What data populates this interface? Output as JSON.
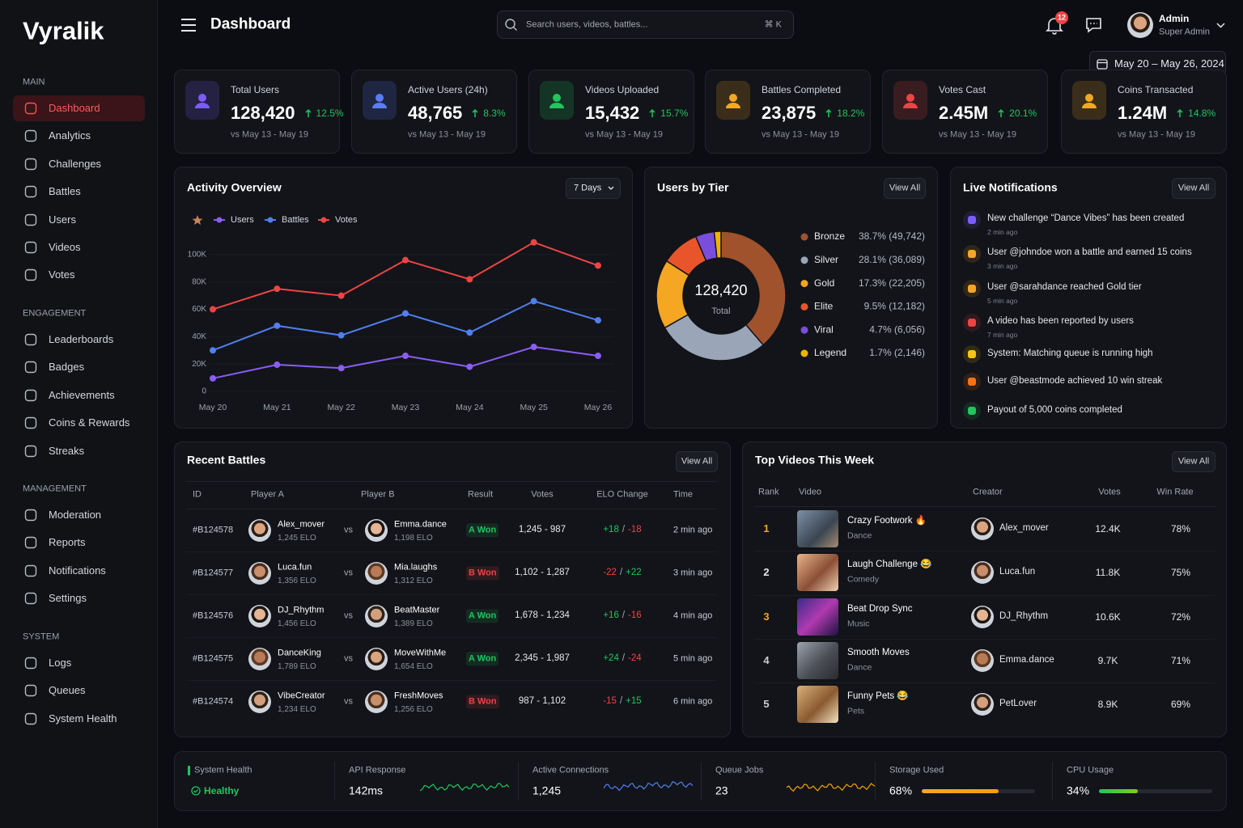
{
  "brand": "Vyralik",
  "sidebar": [
    {
      "title": "MAIN",
      "items": [
        "Dashboard",
        "Analytics",
        "Challenges",
        "Battles",
        "Users",
        "Videos",
        "Votes"
      ]
    },
    {
      "title": "ENGAGEMENT",
      "items": [
        "Leaderboards",
        "Badges",
        "Achievements",
        "Coins & Rewards",
        "Streaks"
      ]
    },
    {
      "title": "MANAGEMENT",
      "items": [
        "Moderation",
        "Reports",
        "Notifications",
        "Settings"
      ]
    },
    {
      "title": "SYSTEM",
      "items": [
        "Logs",
        "Queues",
        "System Health"
      ]
    }
  ],
  "header": {
    "title": "Dashboard",
    "search_placeholder": "Search users, videos, battles...",
    "shortcut": "⌘ K",
    "notifications_count": "12",
    "user_name": "Admin",
    "user_role": "Super Admin",
    "date_range": "May 20 – May 26, 2024"
  },
  "stats": [
    {
      "label": "Total Users",
      "value": "128,420",
      "change": "12.5%",
      "compare": "vs May 13 - May 19",
      "color": "#7c5cff"
    },
    {
      "label": "Active Users (24h)",
      "value": "48,765",
      "change": "8.3%",
      "compare": "vs May 13 - May 19",
      "color": "#5b7cfa"
    },
    {
      "label": "Videos Uploaded",
      "value": "15,432",
      "change": "15.7%",
      "compare": "vs May 13 - May 19",
      "color": "#22c55e"
    },
    {
      "label": "Battles Completed",
      "value": "23,875",
      "change": "18.2%",
      "compare": "vs May 13 - May 19",
      "color": "#f5a623"
    },
    {
      "label": "Votes Cast",
      "value": "2.45M",
      "change": "20.1%",
      "compare": "vs May 13 - May 19",
      "color": "#ef4444"
    },
    {
      "label": "Coins Transacted",
      "value": "1.24M",
      "change": "14.8%",
      "compare": "vs May 13 - May 19",
      "color": "#f5a623"
    }
  ],
  "chart_data": [
    {
      "type": "line",
      "title": "Activity Overview",
      "range": "7 Days",
      "categories": [
        "May 20",
        "May 21",
        "May 22",
        "May 23",
        "May 24",
        "May 25",
        "May 26"
      ],
      "series": [
        {
          "name": "Users",
          "color": "#8b5cf6",
          "values": [
            9500,
            19500,
            17000,
            26000,
            18000,
            32500,
            26000
          ]
        },
        {
          "name": "Battles",
          "color": "#4f7ff0",
          "values": [
            30000,
            48000,
            41000,
            57000,
            43000,
            66000,
            52000
          ]
        },
        {
          "name": "Votes",
          "color": "#ef4444",
          "values": [
            60000,
            75000,
            70000,
            96000,
            82000,
            109000,
            92000
          ]
        }
      ],
      "ylim": [
        0,
        110000
      ],
      "yticks": [
        0,
        {
          "value": 20000,
          "label": "20K"
        },
        {
          "value": 40000,
          "label": "40K"
        },
        {
          "value": 60000,
          "label": "60K"
        },
        {
          "value": 80000,
          "label": "80K"
        },
        {
          "value": 100000,
          "label": "100K"
        }
      ]
    },
    {
      "type": "pie",
      "title": "Users by Tier",
      "action": "View All",
      "center_value": "128,420",
      "center_label": "Total",
      "categories": [
        "Bronze",
        "Silver",
        "Gold",
        "Elite",
        "Viral",
        "Legend"
      ],
      "values": [
        38.7,
        28.1,
        17.3,
        9.5,
        4.7,
        1.7
      ],
      "value_labels": [
        "38.7% (49,742)",
        "28.1% (36,089)",
        "17.3% (22,205)",
        "9.5% (12,182)",
        "4.7% (6,056)",
        "1.7% (2,146)"
      ],
      "colors": [
        "#a0522d",
        "#9aa5b8",
        "#f5a623",
        "#e8552b",
        "#7b4ddb",
        "#f0b400"
      ]
    }
  ],
  "notifications": {
    "title": "Live Notifications",
    "action": "View All",
    "items": [
      {
        "text": "New challenge “Dance Vibes” has been created",
        "time": "2 min ago",
        "color": "#7c5cff"
      },
      {
        "text": "User @johndoe won a battle and earned 15 coins",
        "time": "3 min ago",
        "color": "#f5a623"
      },
      {
        "text": "User @sarahdance reached Gold tier",
        "time": "5 min ago",
        "color": "#f5a623"
      },
      {
        "text": "A video has been reported by users",
        "time": "7 min ago",
        "color": "#ef4444"
      },
      {
        "text": "System: Matching queue is running high",
        "color": "#f5c518"
      },
      {
        "text": "User @beastmode achieved 10 win streak",
        "color": "#f97316"
      },
      {
        "text": "Payout of 5,000 coins completed",
        "color": "#22c55e"
      }
    ]
  },
  "battles": {
    "title": "Recent Battles",
    "action": "View All",
    "vs": "vs",
    "change_separator": "/",
    "columns": [
      "ID",
      "Player A",
      "Player B",
      "Result",
      "Votes",
      "ELO Change",
      "Time"
    ],
    "rows": [
      {
        "id": "#B124578",
        "player_a": "Alex_mover",
        "elo_a": "1,245 ELO",
        "player_b": "Emma.dance",
        "elo_b": "1,198 ELO",
        "result": "A Won",
        "result_color": "#22c55e",
        "votes": "1,245 - 987",
        "change_a": "+18",
        "change_b": "-18",
        "time": "2 min ago"
      },
      {
        "id": "#B124577",
        "player_a": "Luca.fun",
        "elo_a": "1,356 ELO",
        "player_b": "Mia.laughs",
        "elo_b": "1,312 ELO",
        "result": "B Won",
        "result_color": "#ef4444",
        "votes": "1,102 - 1,287",
        "change_a": "-22",
        "change_b": "+22",
        "time": "3 min ago"
      },
      {
        "id": "#B124576",
        "player_a": "DJ_Rhythm",
        "elo_a": "1,456 ELO",
        "player_b": "BeatMaster",
        "elo_b": "1,389 ELO",
        "result": "A Won",
        "result_color": "#22c55e",
        "votes": "1,678 - 1,234",
        "change_a": "+16",
        "change_b": "-16",
        "time": "4 min ago"
      },
      {
        "id": "#B124575",
        "player_a": "DanceKing",
        "elo_a": "1,789 ELO",
        "player_b": "MoveWithMe",
        "elo_b": "1,654 ELO",
        "result": "A Won",
        "result_color": "#22c55e",
        "votes": "2,345 - 1,987",
        "change_a": "+24",
        "change_b": "-24",
        "time": "5 min ago"
      },
      {
        "id": "#B124574",
        "player_a": "VibeCreator",
        "elo_a": "1,234 ELO",
        "player_b": "FreshMoves",
        "elo_b": "1,256 ELO",
        "result": "B Won",
        "result_color": "#ef4444",
        "votes": "987 - 1,102",
        "change_a": "-15",
        "change_b": "+15",
        "time": "6 min ago"
      }
    ]
  },
  "videos": {
    "title": "Top Videos This Week",
    "action": "View All",
    "columns": [
      "Rank",
      "Video",
      "Creator",
      "Votes",
      "Win Rate"
    ],
    "rows": [
      {
        "rank": "1",
        "title": "Crazy Footwork 🔥",
        "category": "Dance",
        "creator": "Alex_mover",
        "votes": "12.4K",
        "win_rate": "78%"
      },
      {
        "rank": "2",
        "title": "Laugh Challenge 😂",
        "category": "Comedy",
        "creator": "Luca.fun",
        "votes": "11.8K",
        "win_rate": "75%"
      },
      {
        "rank": "3",
        "title": "Beat Drop Sync",
        "category": "Music",
        "creator": "DJ_Rhythm",
        "votes": "10.6K",
        "win_rate": "72%"
      },
      {
        "rank": "4",
        "title": "Smooth Moves",
        "category": "Dance",
        "creator": "Emma.dance",
        "votes": "9.7K",
        "win_rate": "71%"
      },
      {
        "rank": "5",
        "title": "Funny Pets 😂",
        "category": "Pets",
        "creator": "PetLover",
        "votes": "8.9K",
        "win_rate": "69%"
      }
    ]
  },
  "system": [
    {
      "label": "System Health",
      "value": "Healthy"
    },
    {
      "label": "API Response",
      "value": "142ms"
    },
    {
      "label": "Active Connections",
      "value": "1,245"
    },
    {
      "label": "Queue Jobs",
      "value": "23"
    },
    {
      "label": "Storage Used",
      "value": "68%",
      "percent": 68
    },
    {
      "label": "CPU Usage",
      "value": "34%",
      "percent": 34
    }
  ]
}
